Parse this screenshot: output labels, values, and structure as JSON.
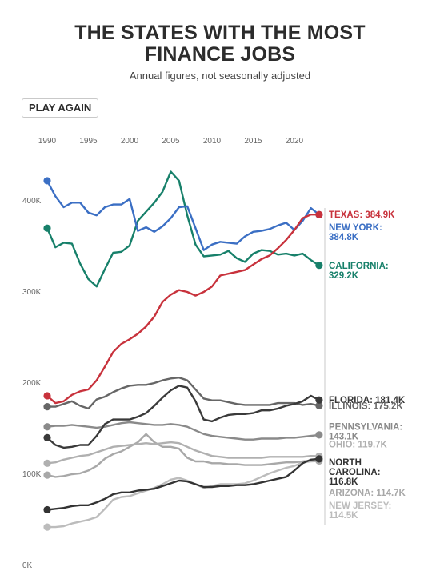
{
  "title_line1": "THE STATES WITH THE MOST",
  "title_line2": "FINANCE JOBS",
  "subtitle": "Annual figures, not seasonally adjusted",
  "play_button_label": "PLAY AGAIN",
  "colors": {
    "texas": "#c8323c",
    "new_york": "#3b6fc4",
    "california": "#17806a",
    "florida": "#3a3a3a",
    "illinois": "#666666",
    "pennsylvania": "#8a8a8a",
    "ohio": "#b0b0b0",
    "north_carolina": "#333333",
    "arizona": "#a8a8a8",
    "new_jersey": "#bcbcbc"
  },
  "chart_data": {
    "type": "line",
    "title": "THE STATES WITH THE MOST FINANCE JOBS",
    "subtitle": "Annual figures, not seasonally adjusted",
    "xlabel": "",
    "ylabel": "",
    "x_ticks": [
      "1990",
      "1995",
      "2000",
      "2005",
      "2010",
      "2015",
      "2020"
    ],
    "y_ticks": [
      "0K",
      "100K",
      "200K",
      "300K",
      "400K"
    ],
    "xlim": [
      1989,
      2024
    ],
    "ylim": [
      0,
      450
    ],
    "grid": false,
    "x": [
      1990,
      1991,
      1992,
      1993,
      1994,
      1995,
      1996,
      1997,
      1998,
      1999,
      2000,
      2001,
      2002,
      2003,
      2004,
      2005,
      2006,
      2007,
      2008,
      2009,
      2010,
      2011,
      2012,
      2013,
      2014,
      2015,
      2016,
      2017,
      2018,
      2019,
      2020,
      2021,
      2022,
      2023
    ],
    "series": [
      {
        "name": "Texas",
        "key": "texas",
        "label_lines": [
          "TEXAS: 384.9K"
        ],
        "label_y": 385,
        "values": [
          186,
          178,
          180,
          187,
          191,
          193,
          203,
          218,
          234,
          243,
          248,
          254,
          262,
          273,
          289,
          297,
          302,
          300,
          296,
          300,
          306,
          318,
          320,
          322,
          324,
          330,
          336,
          340,
          348,
          357,
          368,
          381,
          384.9,
          384.9
        ]
      },
      {
        "name": "New York",
        "key": "new_york",
        "label_lines": [
          "NEW YORK:",
          "384.8K"
        ],
        "label_y": 371,
        "values": [
          422,
          405,
          393,
          398,
          398,
          387,
          384,
          393,
          396,
          396,
          402,
          367,
          371,
          366,
          372,
          381,
          393,
          394,
          370,
          346,
          352,
          355,
          354,
          353,
          361,
          366,
          367,
          369,
          373,
          376,
          368,
          378,
          392,
          384.8
        ]
      },
      {
        "name": "California",
        "key": "california",
        "label_lines": [
          "CALIFORNIA:",
          "329.2K"
        ],
        "label_y": 329,
        "values": [
          370,
          349,
          354,
          353,
          331,
          314,
          306,
          325,
          343,
          344,
          351,
          378,
          388,
          398,
          410,
          432,
          422,
          384,
          352,
          339,
          340,
          341,
          345,
          337,
          333,
          342,
          346,
          345,
          341,
          342,
          340,
          342,
          335,
          329.2
        ]
      },
      {
        "name": "Florida",
        "key": "florida",
        "label_lines": [
          "FLORIDA: 181.4K"
        ],
        "label_y": 181.4,
        "values": [
          140,
          132,
          129,
          130,
          132,
          132,
          142,
          155,
          160,
          160,
          160,
          163,
          167,
          175,
          184,
          192,
          197,
          195,
          180,
          160,
          158,
          162,
          165,
          166,
          166,
          167,
          170,
          170,
          172,
          175,
          177,
          180,
          186,
          181.4
        ]
      },
      {
        "name": "Illinois",
        "key": "illinois",
        "label_lines": [
          "ILLINOIS: 175.2K"
        ],
        "label_y": 175.2,
        "values": [
          174,
          174,
          177,
          180,
          175,
          172,
          182,
          185,
          190,
          194,
          197,
          198,
          198,
          200,
          203,
          205,
          206,
          203,
          193,
          183,
          181,
          181,
          179,
          177,
          176,
          176,
          176,
          176,
          178,
          178,
          178,
          176,
          177,
          175.2
        ]
      },
      {
        "name": "Pennsylvania",
        "key": "pennsylvania",
        "label_lines": [
          "PENNSYLVANIA:",
          "143.1K"
        ],
        "label_y": 152,
        "values": [
          152,
          153,
          153,
          154,
          153,
          152,
          151,
          152,
          154,
          156,
          157,
          156,
          155,
          154,
          154,
          155,
          154,
          152,
          148,
          144,
          142,
          141,
          140,
          139,
          138,
          138,
          139,
          139,
          139,
          140,
          140,
          141,
          142,
          143.1
        ]
      },
      {
        "name": "Ohio",
        "key": "ohio",
        "label_lines": [
          "OHIO: 119.7K"
        ],
        "label_y": 133,
        "values": [
          112,
          113,
          116,
          118,
          120,
          121,
          124,
          127,
          130,
          131,
          132,
          133,
          134,
          133,
          134,
          135,
          134,
          130,
          126,
          123,
          120,
          119,
          118,
          118,
          118,
          118,
          118,
          119,
          119,
          119,
          119,
          119,
          120,
          119.7
        ]
      },
      {
        "name": "North Carolina",
        "key": "north_carolina",
        "label_lines": [
          "NORTH",
          "CAROLINA:",
          "116.8K"
        ],
        "label_y": 113,
        "values": [
          61,
          62,
          63,
          65,
          66,
          66,
          69,
          73,
          78,
          80,
          80,
          82,
          83,
          84,
          87,
          90,
          93,
          92,
          89,
          86,
          86,
          87,
          87,
          88,
          88,
          89,
          91,
          93,
          95,
          97,
          104,
          112,
          116,
          116.8
        ]
      },
      {
        "name": "Arizona",
        "key": "arizona",
        "label_lines": [
          "ARIZONA: 114.7K"
        ],
        "label_y": 80,
        "values": [
          99,
          97,
          98,
          100,
          101,
          104,
          109,
          117,
          122,
          125,
          130,
          135,
          144,
          135,
          130,
          130,
          128,
          118,
          114,
          114,
          112,
          112,
          111,
          111,
          110,
          110,
          110,
          111,
          112,
          113,
          113,
          114,
          115,
          114.7
        ]
      },
      {
        "name": "New Jersey",
        "key": "new_jersey",
        "label_lines": [
          "NEW JERSEY:",
          "114.5K"
        ],
        "label_y": 66,
        "values": [
          42,
          42,
          43,
          46,
          48,
          50,
          53,
          62,
          72,
          75,
          76,
          79,
          82,
          85,
          89,
          94,
          96,
          93,
          89,
          85,
          87,
          89,
          89,
          89,
          90,
          93,
          97,
          101,
          104,
          107,
          109,
          113,
          114,
          114.5
        ]
      }
    ]
  }
}
